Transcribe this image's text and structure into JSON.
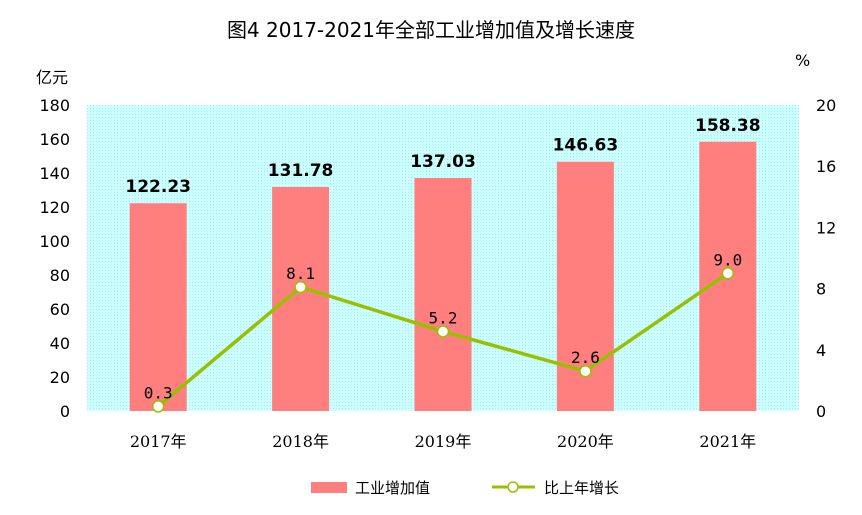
{
  "chart_data": {
    "type": "bar",
    "title": "图4 2017-2021年全部工业增加值及增长速度",
    "categories": [
      "2017年",
      "2018年",
      "2019年",
      "2020年",
      "2021年"
    ],
    "left_axis": {
      "unit": "亿元",
      "ylim": [
        0,
        180
      ],
      "ticks": [
        "0",
        "20",
        "40",
        "60",
        "80",
        "100",
        "120",
        "140",
        "160",
        "180"
      ]
    },
    "right_axis": {
      "unit": "%",
      "ylim": [
        0,
        20
      ],
      "ticks": [
        "0",
        "4",
        "8",
        "12",
        "16",
        "20"
      ]
    },
    "series": [
      {
        "name": "工业增加值",
        "type": "bar",
        "axis": "left",
        "values": [
          122.23,
          131.78,
          137.03,
          146.63,
          158.38
        ],
        "labels": [
          "122.23",
          "131.78",
          "137.03",
          "146.63",
          "158.38"
        ]
      },
      {
        "name": "比上年增长",
        "type": "line",
        "axis": "right",
        "values": [
          0.3,
          8.1,
          5.2,
          2.6,
          9.0
        ],
        "labels": [
          "0.3",
          "8.1",
          "5.2",
          "2.6",
          "9.0"
        ]
      }
    ],
    "legend_position": "bottom",
    "grid": false,
    "colors": {
      "bar": "#ff7f7f",
      "line": "#99c000",
      "plot_bg": "#ccffff"
    }
  }
}
